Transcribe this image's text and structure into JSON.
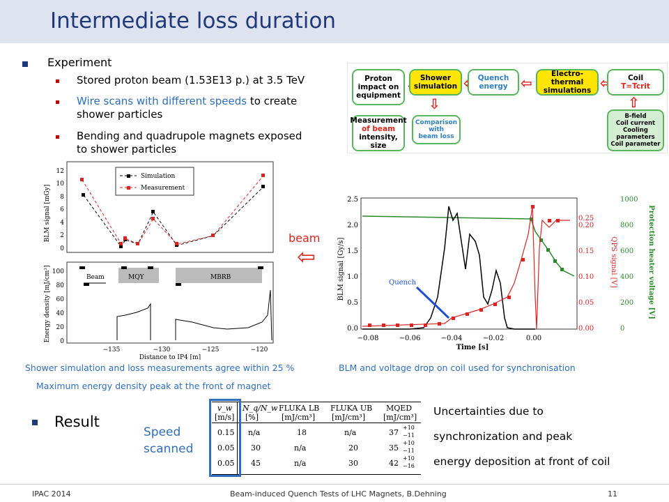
{
  "title": "Intermediate loss duration",
  "experiment": {
    "heading": "Experiment",
    "items": [
      {
        "text": "Stored proton beam (1.53E13 p.) at 3.5 TeV",
        "color": "#000000"
      },
      {
        "text": "Wire scans with different speeds",
        "suffix": " to create",
        "line2": "shower particles",
        "color": "#2e6fbf"
      },
      {
        "text": "Bending and quadrupole magnets exposed",
        "line2": "to shower particles",
        "color": "#000000"
      }
    ]
  },
  "flow": {
    "proton_impact": [
      "Proton",
      "impact on",
      "equipment"
    ],
    "shower_sim": [
      "Shower",
      "simulation"
    ],
    "quench_energy": [
      "Quench",
      "energy"
    ],
    "electro_thermal": [
      "Electro-thermal",
      "simulations"
    ],
    "coil": "Coil",
    "coil_t": "T=Tcrit",
    "measurement": [
      "Measurement",
      "of beam",
      "intensity, size"
    ],
    "comparison": [
      "Comparison",
      "with",
      "beam loss"
    ],
    "coil_params": [
      "B-field",
      "Coil current",
      "Cooling",
      "parameters",
      "Coil parameter"
    ]
  },
  "left_plot": {
    "legend_sim": "Simulation",
    "legend_meas": "Measurement",
    "ylabel_top": "BLM signal [mGy]",
    "ylabel_bottom": "Energy density [mJ/cm³]",
    "xlabel": "Distance to IP4 [m]",
    "label_beam": "Beam",
    "label_mqy": "MQY",
    "label_mbrb": "MBRB",
    "yticks_top": [
      "0",
      "2",
      "4",
      "6",
      "8",
      "10",
      "12"
    ],
    "yticks_bottom": [
      "0",
      "20",
      "40",
      "60",
      "80",
      "100"
    ],
    "xticks": [
      "−135",
      "−130",
      "−125",
      "−120"
    ]
  },
  "beam_label": "beam",
  "beam_arrow": "⇦",
  "right_plot": {
    "ylabel_left": "BLM signal [Gy/s]",
    "ylabel_mid": "QPS signal [V]",
    "ylabel_right": "Protection heater voltage [V]",
    "xlabel": "Time [s]",
    "quench_label": "Quench",
    "yticks_left": [
      "0.0",
      "0.5",
      "1.0",
      "1.5",
      "2.0",
      "2.5"
    ],
    "yticks_mid": [
      "0.00",
      "0.05",
      "0.10",
      "0.15",
      "0.20",
      "0.25"
    ],
    "yticks_right": [
      "0",
      "200",
      "400",
      "600",
      "800",
      "1000"
    ],
    "xticks": [
      "−0.08",
      "−0.06",
      "−0.04",
      "−0.02",
      "0.00"
    ]
  },
  "caption_left_1": "Shower simulation and loss measurements  agree within 25 %",
  "caption_left_2": "Maximum energy density peak at the  front of magnet",
  "caption_right": "BLM and voltage drop on coil used  for synchronisation",
  "result_heading": "Result",
  "speed_label": "Speed scanned",
  "table": {
    "headers": [
      "v_w",
      "N_q/N_w",
      "FLUKA LB",
      "FLUKA UB",
      "MQED"
    ],
    "units": [
      "[m/s]",
      "[%]",
      "[mJ/cm³]",
      "[mJ/cm³]",
      "[mJ/cm³]"
    ],
    "rows": [
      [
        "0.15",
        "n/a",
        "18",
        "n/a",
        "37",
        "+10",
        "−11"
      ],
      [
        "0.05",
        "30",
        "n/a",
        "20",
        "35",
        "+10",
        "−11"
      ],
      [
        "0.05",
        "45",
        "n/a",
        "30",
        "42",
        "+10",
        "−16"
      ]
    ]
  },
  "uncertainties": [
    "Uncertainties due to",
    "synchronization and peak",
    "energy deposition at front of coil"
  ],
  "footer": {
    "left": "IPAC 2014",
    "center": "Beam-induced Quench Tests of LHC Magnets, B.Dehning",
    "page": "11"
  }
}
